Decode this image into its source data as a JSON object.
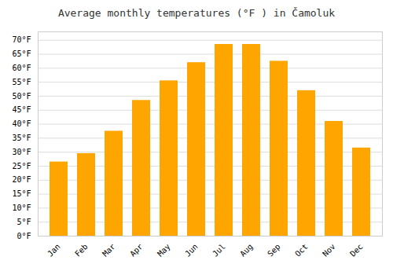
{
  "chart_data": {
    "type": "bar",
    "title": "Average monthly temperatures (°F ) in Čamoluk",
    "categories": [
      "Jan",
      "Feb",
      "Mar",
      "Apr",
      "May",
      "Jun",
      "Jul",
      "Aug",
      "Sep",
      "Oct",
      "Nov",
      "Dec"
    ],
    "values": [
      26.5,
      29.5,
      37.5,
      48.5,
      55.5,
      62.0,
      68.5,
      68.5,
      62.5,
      52.0,
      41.0,
      31.5
    ],
    "color": "#FFA500",
    "ylim": [
      0,
      73
    ],
    "yticks": [
      {
        "value": 0,
        "label": "0°F"
      },
      {
        "value": 5,
        "label": "5°F"
      },
      {
        "value": 10,
        "label": "10°F"
      },
      {
        "value": 15,
        "label": "15°F"
      },
      {
        "value": 20,
        "label": "20°F"
      },
      {
        "value": 25,
        "label": "25°F"
      },
      {
        "value": 30,
        "label": "30°F"
      },
      {
        "value": 35,
        "label": "35°F"
      },
      {
        "value": 40,
        "label": "40°F"
      },
      {
        "value": 45,
        "label": "45°F"
      },
      {
        "value": 50,
        "label": "50°F"
      },
      {
        "value": 55,
        "label": "55°F"
      },
      {
        "value": 60,
        "label": "60°F"
      },
      {
        "value": 65,
        "label": "65°F"
      },
      {
        "value": 70,
        "label": "70°F"
      }
    ],
    "grid": true
  }
}
